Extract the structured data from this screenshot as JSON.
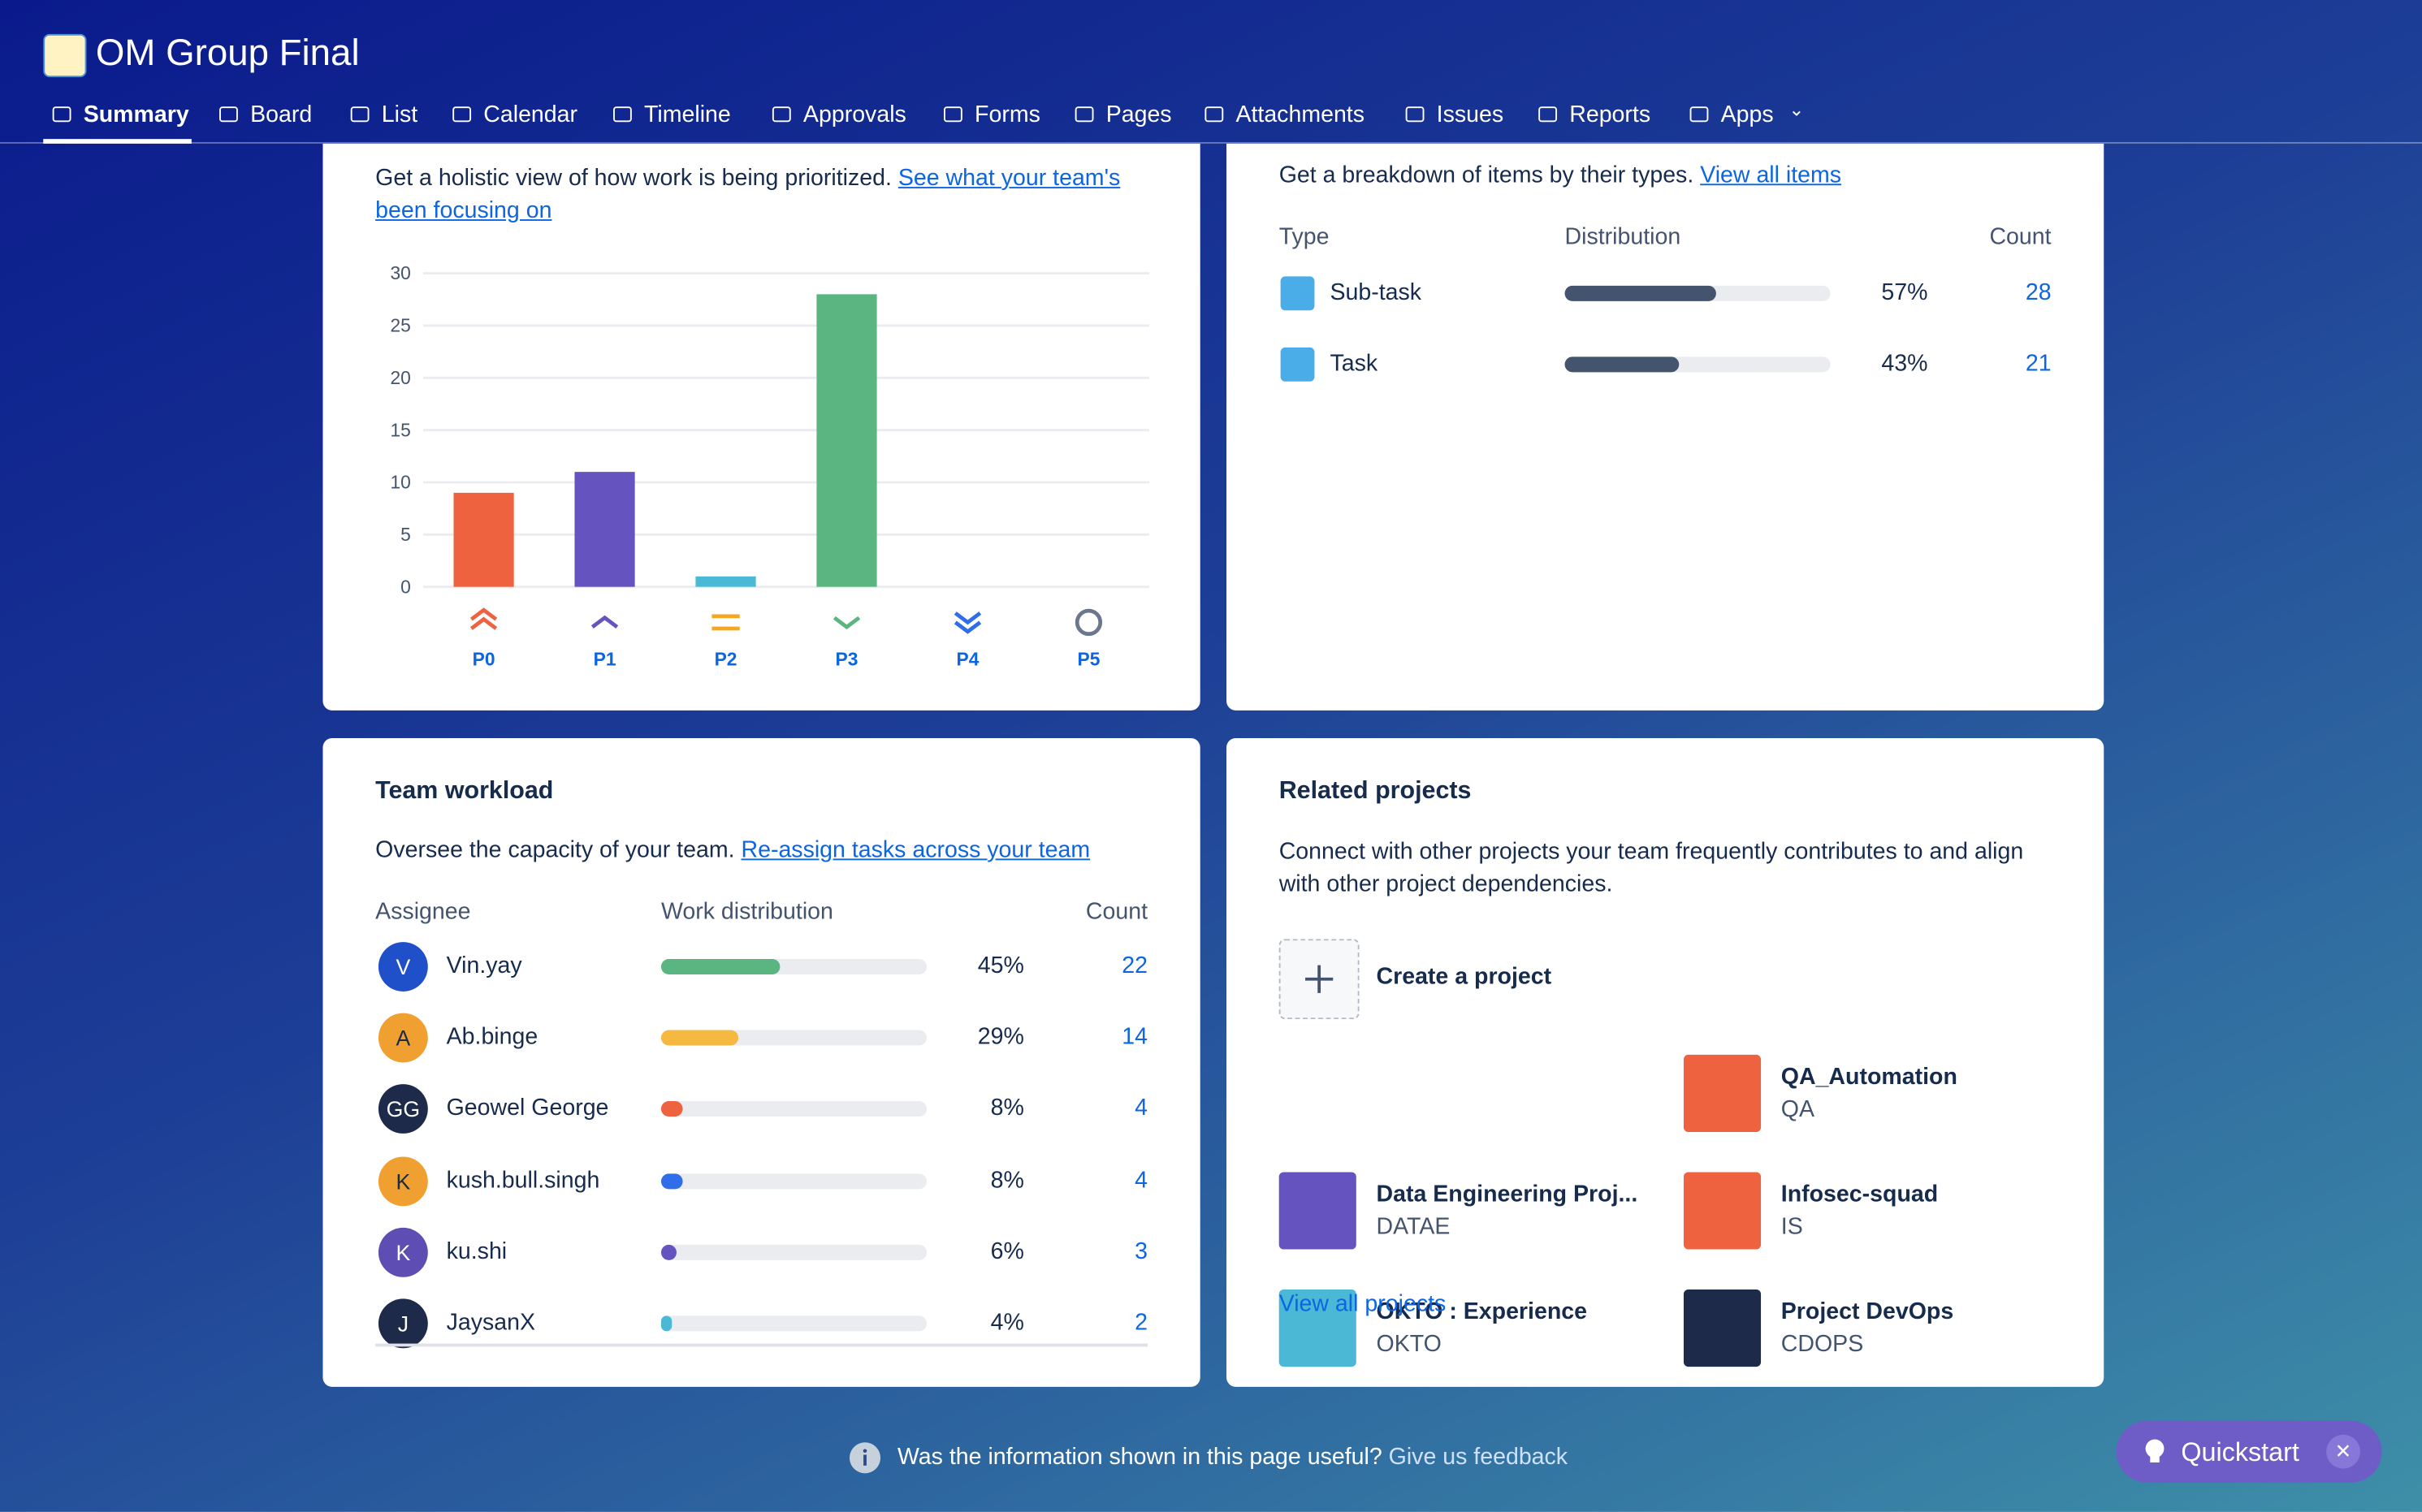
{
  "header": {
    "title": "OM Group Final"
  },
  "nav": [
    "Summary",
    "Board",
    "List",
    "Calendar",
    "Timeline",
    "Approvals",
    "Forms",
    "Pages",
    "Attachments",
    "Issues",
    "Reports",
    "Apps"
  ],
  "priority_card": {
    "description": "Get a holistic view of how work is being prioritized.",
    "link": "See what your team's been focusing on"
  },
  "chart_data": {
    "type": "bar",
    "categories": [
      "P0",
      "P1",
      "P2",
      "P3",
      "P4",
      "P5"
    ],
    "values": [
      9,
      11,
      1,
      28,
      0,
      0
    ],
    "colors": [
      "#ef6240",
      "#6554c0",
      "#4bb8d6",
      "#5bb581",
      "#2f6ee8",
      "#6b778c"
    ],
    "ylim": [
      0,
      30
    ],
    "yticks": [
      0,
      5,
      10,
      15,
      20,
      25,
      30
    ],
    "grid": true
  },
  "types_card": {
    "description": "Get a breakdown of items by their types.",
    "link": "View all items",
    "columns": [
      "Type",
      "Distribution",
      "Count"
    ],
    "rows": [
      {
        "name": "Sub-task",
        "distribution": 57,
        "distribution_label": "57%",
        "count": 28
      },
      {
        "name": "Task",
        "distribution": 43,
        "distribution_label": "43%",
        "count": 21
      }
    ]
  },
  "workload_card": {
    "title": "Team workload",
    "description": "Oversee the capacity of your team.",
    "link": "Re-assign tasks across your team",
    "columns": [
      "Assignee",
      "Work distribution",
      "Count"
    ],
    "rows": [
      {
        "initials": "V",
        "name": "Vin.yay",
        "distribution": 45,
        "distribution_label": "45%",
        "count": 22,
        "color": "#5bb581",
        "avatar": "#1f4fc9"
      },
      {
        "initials": "A",
        "name": "Ab.binge",
        "distribution": 29,
        "distribution_label": "29%",
        "count": 14,
        "color": "#f5b841",
        "avatar": "#f0a030"
      },
      {
        "initials": "GG",
        "name": "Geowel George",
        "distribution": 8,
        "distribution_label": "8%",
        "count": 4,
        "color": "#ef6240",
        "avatar": "#1d2a4a"
      },
      {
        "initials": "K",
        "name": "kush.bull.singh",
        "distribution": 8,
        "distribution_label": "8%",
        "count": 4,
        "color": "#2f6ee8",
        "avatar": "#f0a030"
      },
      {
        "initials": "K",
        "name": "ku.shi",
        "distribution": 6,
        "distribution_label": "6%",
        "count": 3,
        "color": "#6554c0",
        "avatar": "#5e4db2"
      },
      {
        "initials": "J",
        "name": "JaysanX",
        "distribution": 4,
        "distribution_label": "4%",
        "count": 2,
        "color": "#4bb8d6",
        "avatar": "#1d2a4a"
      }
    ]
  },
  "related_card": {
    "title": "Related projects",
    "description": "Connect with other projects your team frequently contributes to and align with other project dependencies.",
    "create": "Create a project",
    "projects": [
      {
        "name": "QA_Automation",
        "key": "QA",
        "color": "#ef6240"
      },
      {
        "name": "Data Engineering Proj...",
        "key": "DATAE",
        "color": "#6554c0"
      },
      {
        "name": "Infosec-squad",
        "key": "IS",
        "color": "#ef6240"
      },
      {
        "name": "OKTO : Experience",
        "key": "OKTO",
        "color": "#4bb8d6"
      },
      {
        "name": "Project DevOps",
        "key": "CDOPS",
        "color": "#1d2a4a"
      }
    ],
    "view_all": "View all projects"
  },
  "feedback": {
    "question": "Was the information shown in this page useful?",
    "link": "Give us feedback"
  },
  "quickstart": "Quickstart"
}
